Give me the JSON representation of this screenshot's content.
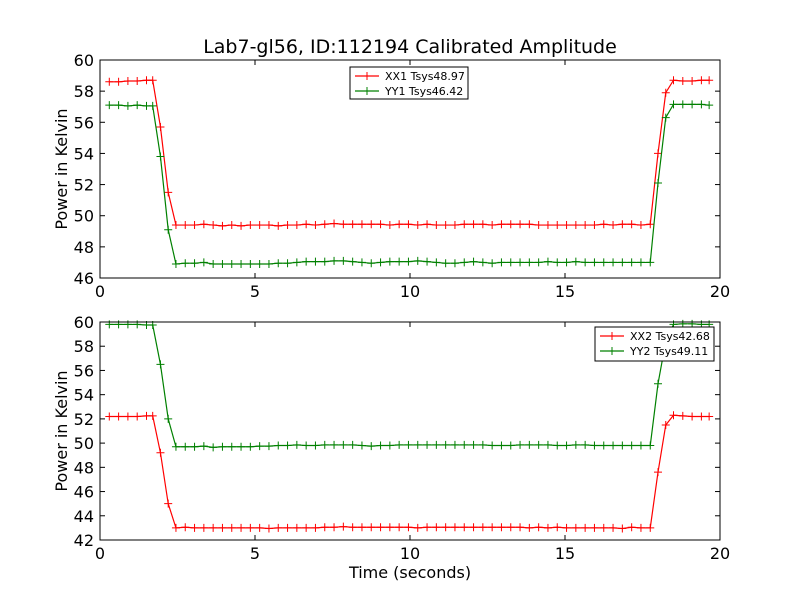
{
  "chart_data": [
    {
      "type": "line",
      "title": "Lab7-gl56, ID:112194 Calibrated Amplitude",
      "xlabel": "",
      "ylabel": "Power in Kelvin",
      "xlim": [
        0,
        20
      ],
      "ylim": [
        46,
        60
      ],
      "xticks": [
        "0",
        "5",
        "10",
        "15",
        "20"
      ],
      "yticks": [
        "46",
        "48",
        "50",
        "52",
        "54",
        "56",
        "58",
        "60"
      ],
      "grid": false,
      "legend": "top-center",
      "x": [
        0.3,
        0.6,
        0.9,
        1.2,
        1.5,
        1.7,
        1.95,
        2.2,
        2.45,
        2.75,
        3.05,
        3.35,
        3.65,
        3.95,
        4.25,
        4.55,
        4.85,
        5.15,
        5.45,
        5.75,
        6.05,
        6.35,
        6.65,
        6.95,
        7.25,
        7.55,
        7.85,
        8.15,
        8.45,
        8.75,
        9.05,
        9.35,
        9.65,
        9.95,
        10.25,
        10.55,
        10.85,
        11.15,
        11.45,
        11.75,
        12.05,
        12.35,
        12.65,
        12.95,
        13.25,
        13.55,
        13.85,
        14.15,
        14.45,
        14.75,
        15.05,
        15.35,
        15.65,
        15.95,
        16.25,
        16.55,
        16.85,
        17.15,
        17.45,
        17.75,
        18.0,
        18.25,
        18.5,
        18.8,
        19.1,
        19.4,
        19.65
      ],
      "series": [
        {
          "name": "XX1 Tsys48.97",
          "color": "#ff0000",
          "values": [
            58.6,
            58.6,
            58.65,
            58.65,
            58.7,
            58.7,
            55.7,
            51.5,
            49.4,
            49.4,
            49.4,
            49.45,
            49.4,
            49.35,
            49.4,
            49.35,
            49.4,
            49.4,
            49.4,
            49.35,
            49.4,
            49.4,
            49.45,
            49.4,
            49.45,
            49.5,
            49.45,
            49.45,
            49.45,
            49.45,
            49.45,
            49.4,
            49.45,
            49.45,
            49.4,
            49.45,
            49.4,
            49.4,
            49.4,
            49.45,
            49.45,
            49.45,
            49.4,
            49.45,
            49.45,
            49.45,
            49.45,
            49.4,
            49.4,
            49.4,
            49.4,
            49.4,
            49.4,
            49.4,
            49.45,
            49.4,
            49.45,
            49.45,
            49.4,
            49.45,
            54.0,
            57.9,
            58.7,
            58.65,
            58.65,
            58.7,
            58.7
          ]
        },
        {
          "name": "YY1 Tsys46.42",
          "color": "#008000",
          "values": [
            57.1,
            57.1,
            57.05,
            57.1,
            57.05,
            57.05,
            53.8,
            49.1,
            46.9,
            46.95,
            46.95,
            47.0,
            46.9,
            46.9,
            46.9,
            46.9,
            46.9,
            46.9,
            46.9,
            46.95,
            46.95,
            47.0,
            47.05,
            47.05,
            47.05,
            47.1,
            47.1,
            47.05,
            47.0,
            46.95,
            47.0,
            47.05,
            47.05,
            47.05,
            47.1,
            47.05,
            47.0,
            46.95,
            46.95,
            47.0,
            47.05,
            47.0,
            46.95,
            47.0,
            47.0,
            47.0,
            47.0,
            47.0,
            47.05,
            47.0,
            47.0,
            47.05,
            47.0,
            47.0,
            47.0,
            47.0,
            47.0,
            47.0,
            47.0,
            47.0,
            52.1,
            56.3,
            57.15,
            57.15,
            57.15,
            57.15,
            57.1
          ]
        }
      ]
    },
    {
      "type": "line",
      "title": "",
      "xlabel": "Time (seconds)",
      "ylabel": "Power in Kelvin",
      "xlim": [
        0,
        20
      ],
      "ylim": [
        42,
        60
      ],
      "xticks": [
        "0",
        "5",
        "10",
        "15",
        "20"
      ],
      "yticks": [
        "42",
        "44",
        "46",
        "48",
        "50",
        "52",
        "54",
        "56",
        "58",
        "60"
      ],
      "grid": false,
      "legend": "top-right",
      "x": [
        0.3,
        0.6,
        0.9,
        1.2,
        1.5,
        1.7,
        1.95,
        2.2,
        2.45,
        2.75,
        3.05,
        3.35,
        3.65,
        3.95,
        4.25,
        4.55,
        4.85,
        5.15,
        5.45,
        5.75,
        6.05,
        6.35,
        6.65,
        6.95,
        7.25,
        7.55,
        7.85,
        8.15,
        8.45,
        8.75,
        9.05,
        9.35,
        9.65,
        9.95,
        10.25,
        10.55,
        10.85,
        11.15,
        11.45,
        11.75,
        12.05,
        12.35,
        12.65,
        12.95,
        13.25,
        13.55,
        13.85,
        14.15,
        14.45,
        14.75,
        15.05,
        15.35,
        15.65,
        15.95,
        16.25,
        16.55,
        16.85,
        17.15,
        17.45,
        17.75,
        18.0,
        18.25,
        18.5,
        18.8,
        19.1,
        19.4,
        19.65
      ],
      "series": [
        {
          "name": "XX2 Tsys42.68",
          "color": "#ff0000",
          "values": [
            52.2,
            52.2,
            52.2,
            52.2,
            52.25,
            52.25,
            49.2,
            45.0,
            43.0,
            43.05,
            43.0,
            43.0,
            43.0,
            43.0,
            43.0,
            43.0,
            43.0,
            43.0,
            42.95,
            43.0,
            43.0,
            43.0,
            43.0,
            43.0,
            43.05,
            43.05,
            43.1,
            43.05,
            43.05,
            43.05,
            43.05,
            43.05,
            43.05,
            43.05,
            43.0,
            43.05,
            43.05,
            43.05,
            43.05,
            43.05,
            43.05,
            43.05,
            43.05,
            43.05,
            43.05,
            43.05,
            43.0,
            43.05,
            43.0,
            43.05,
            43.0,
            43.0,
            43.0,
            43.0,
            43.0,
            43.0,
            42.95,
            43.05,
            43.0,
            43.0,
            47.6,
            51.5,
            52.3,
            52.25,
            52.2,
            52.2,
            52.2
          ]
        },
        {
          "name": "YY2 Tsys49.11",
          "color": "#008000",
          "values": [
            59.8,
            59.8,
            59.8,
            59.8,
            59.75,
            59.75,
            56.5,
            52.0,
            49.7,
            49.7,
            49.7,
            49.75,
            49.65,
            49.7,
            49.7,
            49.7,
            49.7,
            49.75,
            49.75,
            49.8,
            49.8,
            49.85,
            49.8,
            49.8,
            49.85,
            49.85,
            49.85,
            49.85,
            49.8,
            49.75,
            49.8,
            49.8,
            49.85,
            49.85,
            49.85,
            49.85,
            49.85,
            49.85,
            49.85,
            49.85,
            49.85,
            49.85,
            49.8,
            49.8,
            49.8,
            49.85,
            49.85,
            49.85,
            49.85,
            49.8,
            49.8,
            49.85,
            49.85,
            49.8,
            49.8,
            49.8,
            49.8,
            49.8,
            49.8,
            49.8,
            54.9,
            58.4,
            59.8,
            59.85,
            59.85,
            59.8,
            59.8
          ]
        }
      ]
    }
  ]
}
